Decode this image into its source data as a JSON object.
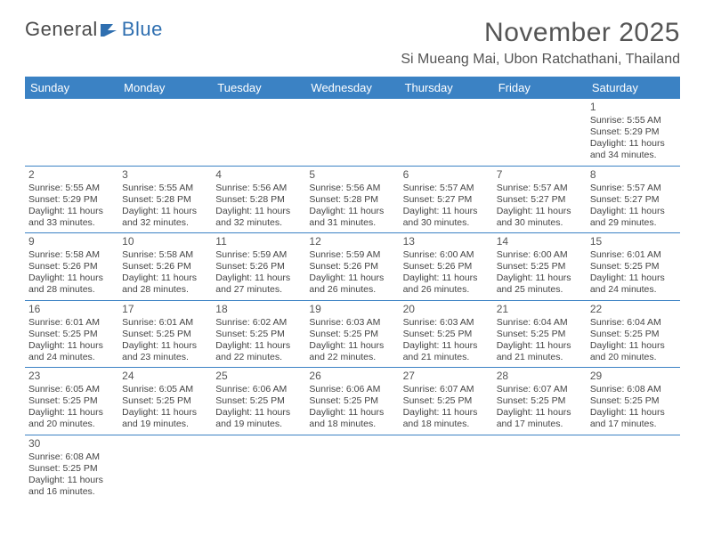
{
  "logo": {
    "text_a": "General",
    "text_b": "Blue"
  },
  "title": "November 2025",
  "location": "Si Mueang Mai, Ubon Ratchathani, Thailand",
  "colors": {
    "header_bar": "#3b82c4",
    "header_text": "#ffffff",
    "rule": "#3b82c4",
    "body_text": "#444444",
    "title_text": "#555555",
    "logo_gray": "#4a4a4a",
    "logo_blue": "#2f6fb0",
    "background": "#ffffff"
  },
  "typography": {
    "title_fontsize_pt": 22,
    "location_fontsize_pt": 12,
    "dow_fontsize_pt": 10,
    "daynum_fontsize_pt": 9,
    "body_fontsize_pt": 8
  },
  "layout": {
    "columns": 7,
    "rows": 6,
    "aspect": "792x612"
  },
  "dow": [
    "Sunday",
    "Monday",
    "Tuesday",
    "Wednesday",
    "Thursday",
    "Friday",
    "Saturday"
  ],
  "weeks": [
    [
      null,
      null,
      null,
      null,
      null,
      null,
      {
        "n": "1",
        "sunrise": "5:55 AM",
        "sunset": "5:29 PM",
        "daylight": "11 hours and 34 minutes."
      }
    ],
    [
      {
        "n": "2",
        "sunrise": "5:55 AM",
        "sunset": "5:29 PM",
        "daylight": "11 hours and 33 minutes."
      },
      {
        "n": "3",
        "sunrise": "5:55 AM",
        "sunset": "5:28 PM",
        "daylight": "11 hours and 32 minutes."
      },
      {
        "n": "4",
        "sunrise": "5:56 AM",
        "sunset": "5:28 PM",
        "daylight": "11 hours and 32 minutes."
      },
      {
        "n": "5",
        "sunrise": "5:56 AM",
        "sunset": "5:28 PM",
        "daylight": "11 hours and 31 minutes."
      },
      {
        "n": "6",
        "sunrise": "5:57 AM",
        "sunset": "5:27 PM",
        "daylight": "11 hours and 30 minutes."
      },
      {
        "n": "7",
        "sunrise": "5:57 AM",
        "sunset": "5:27 PM",
        "daylight": "11 hours and 30 minutes."
      },
      {
        "n": "8",
        "sunrise": "5:57 AM",
        "sunset": "5:27 PM",
        "daylight": "11 hours and 29 minutes."
      }
    ],
    [
      {
        "n": "9",
        "sunrise": "5:58 AM",
        "sunset": "5:26 PM",
        "daylight": "11 hours and 28 minutes."
      },
      {
        "n": "10",
        "sunrise": "5:58 AM",
        "sunset": "5:26 PM",
        "daylight": "11 hours and 28 minutes."
      },
      {
        "n": "11",
        "sunrise": "5:59 AM",
        "sunset": "5:26 PM",
        "daylight": "11 hours and 27 minutes."
      },
      {
        "n": "12",
        "sunrise": "5:59 AM",
        "sunset": "5:26 PM",
        "daylight": "11 hours and 26 minutes."
      },
      {
        "n": "13",
        "sunrise": "6:00 AM",
        "sunset": "5:26 PM",
        "daylight": "11 hours and 26 minutes."
      },
      {
        "n": "14",
        "sunrise": "6:00 AM",
        "sunset": "5:25 PM",
        "daylight": "11 hours and 25 minutes."
      },
      {
        "n": "15",
        "sunrise": "6:01 AM",
        "sunset": "5:25 PM",
        "daylight": "11 hours and 24 minutes."
      }
    ],
    [
      {
        "n": "16",
        "sunrise": "6:01 AM",
        "sunset": "5:25 PM",
        "daylight": "11 hours and 24 minutes."
      },
      {
        "n": "17",
        "sunrise": "6:01 AM",
        "sunset": "5:25 PM",
        "daylight": "11 hours and 23 minutes."
      },
      {
        "n": "18",
        "sunrise": "6:02 AM",
        "sunset": "5:25 PM",
        "daylight": "11 hours and 22 minutes."
      },
      {
        "n": "19",
        "sunrise": "6:03 AM",
        "sunset": "5:25 PM",
        "daylight": "11 hours and 22 minutes."
      },
      {
        "n": "20",
        "sunrise": "6:03 AM",
        "sunset": "5:25 PM",
        "daylight": "11 hours and 21 minutes."
      },
      {
        "n": "21",
        "sunrise": "6:04 AM",
        "sunset": "5:25 PM",
        "daylight": "11 hours and 21 minutes."
      },
      {
        "n": "22",
        "sunrise": "6:04 AM",
        "sunset": "5:25 PM",
        "daylight": "11 hours and 20 minutes."
      }
    ],
    [
      {
        "n": "23",
        "sunrise": "6:05 AM",
        "sunset": "5:25 PM",
        "daylight": "11 hours and 20 minutes."
      },
      {
        "n": "24",
        "sunrise": "6:05 AM",
        "sunset": "5:25 PM",
        "daylight": "11 hours and 19 minutes."
      },
      {
        "n": "25",
        "sunrise": "6:06 AM",
        "sunset": "5:25 PM",
        "daylight": "11 hours and 19 minutes."
      },
      {
        "n": "26",
        "sunrise": "6:06 AM",
        "sunset": "5:25 PM",
        "daylight": "11 hours and 18 minutes."
      },
      {
        "n": "27",
        "sunrise": "6:07 AM",
        "sunset": "5:25 PM",
        "daylight": "11 hours and 18 minutes."
      },
      {
        "n": "28",
        "sunrise": "6:07 AM",
        "sunset": "5:25 PM",
        "daylight": "11 hours and 17 minutes."
      },
      {
        "n": "29",
        "sunrise": "6:08 AM",
        "sunset": "5:25 PM",
        "daylight": "11 hours and 17 minutes."
      }
    ],
    [
      {
        "n": "30",
        "sunrise": "6:08 AM",
        "sunset": "5:25 PM",
        "daylight": "11 hours and 16 minutes."
      },
      null,
      null,
      null,
      null,
      null,
      null
    ]
  ],
  "labels": {
    "sunrise": "Sunrise:",
    "sunset": "Sunset:",
    "daylight": "Daylight:"
  }
}
